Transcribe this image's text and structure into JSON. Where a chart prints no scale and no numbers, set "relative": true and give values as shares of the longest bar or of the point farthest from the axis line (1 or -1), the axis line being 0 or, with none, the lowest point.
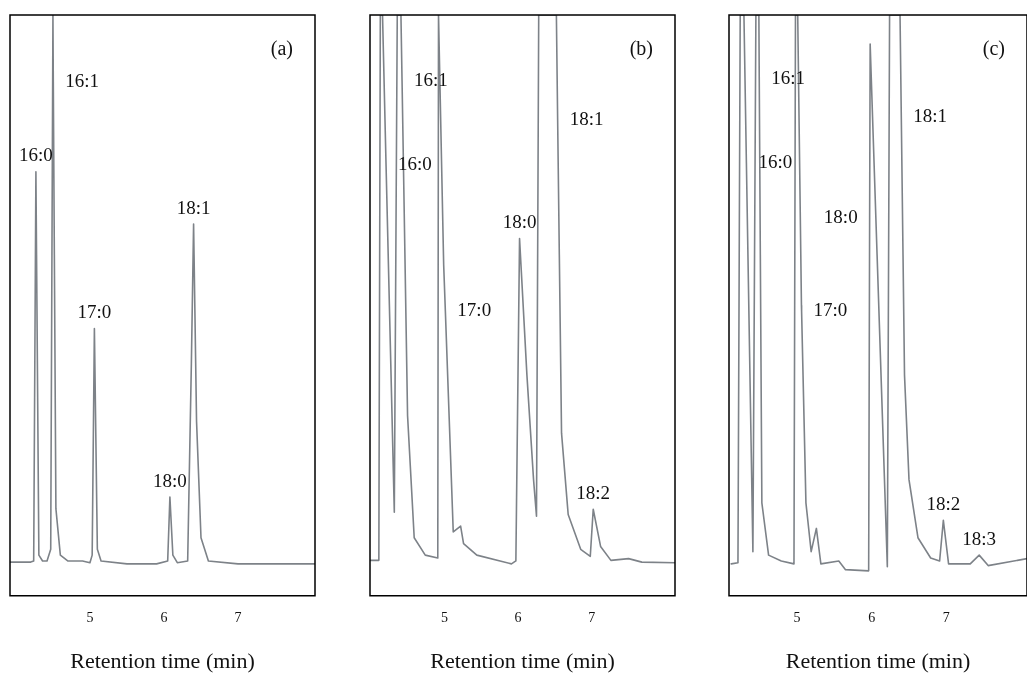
{
  "chart_data": [
    {
      "type": "line",
      "title": "(a)",
      "xlabel": "Retention time (min)",
      "relative": true,
      "xlim": [
        3.92,
        8.04
      ],
      "xticks": [
        5,
        6,
        7
      ],
      "tick_labels": "x",
      "grid": false,
      "marker": "none",
      "x": [
        3.92,
        4.2,
        4.24,
        4.27,
        4.31,
        4.36,
        4.42,
        4.47,
        4.5,
        4.505,
        4.54,
        4.6,
        4.7,
        4.9,
        5.0,
        5.03,
        5.06,
        5.1,
        5.15,
        5.5,
        5.9,
        6.05,
        6.08,
        6.12,
        6.18,
        6.32,
        6.37,
        6.4,
        6.44,
        6.5,
        6.6,
        7.0,
        7.5,
        8.04
      ],
      "series": [
        {
          "color": "#7d8288",
          "values": [
            0.058,
            0.058,
            0.06,
            0.73,
            0.07,
            0.06,
            0.06,
            0.08,
            1.0,
            0.885,
            0.15,
            0.07,
            0.06,
            0.06,
            0.057,
            0.07,
            0.46,
            0.08,
            0.06,
            0.055,
            0.055,
            0.06,
            0.17,
            0.07,
            0.057,
            0.06,
            0.4,
            0.64,
            0.3,
            0.1,
            0.06,
            0.055,
            0.055,
            0.055
          ]
        }
      ],
      "annotations": [
        {
          "text": "16:0",
          "x": 4.27,
          "y": 0.73
        },
        {
          "text": "16:1",
          "x": 4.505,
          "y": 0.885
        },
        {
          "text": "17:0",
          "x": 5.06,
          "y": 0.46
        },
        {
          "text": "18:0",
          "x": 6.08,
          "y": 0.17
        },
        {
          "text": "18:1",
          "x": 6.4,
          "y": 0.64
        }
      ]
    },
    {
      "type": "line",
      "title": "(b)",
      "xlabel": "Retention time (min)",
      "relative": true,
      "xlim": [
        3.99,
        8.13
      ],
      "xticks": [
        5,
        6,
        7
      ],
      "tick_labels": "x",
      "grid": false,
      "marker": "none",
      "x": [
        3.99,
        4.11,
        4.13,
        4.16,
        4.208,
        4.32,
        4.36,
        4.38,
        4.41,
        4.425,
        4.5,
        4.59,
        4.74,
        4.91,
        4.92,
        4.99,
        5.013,
        5.12,
        5.22,
        5.26,
        5.44,
        5.91,
        5.97,
        6.02,
        6.12,
        6.21,
        6.25,
        6.28,
        6.52,
        6.537,
        6.59,
        6.68,
        6.85,
        6.98,
        7.02,
        7.12,
        7.26,
        7.5,
        7.68,
        8.13
      ],
      "series": [
        {
          "color": "#7d8288",
          "values": [
            0.061,
            0.061,
            1.0,
            1.0,
            0.741,
            0.144,
            1.0,
            1.0,
            1.0,
            0.887,
            0.31,
            0.1,
            0.07,
            0.065,
            1.0,
            0.57,
            0.49,
            0.11,
            0.12,
            0.09,
            0.07,
            0.055,
            0.06,
            0.615,
            0.38,
            0.2,
            0.137,
            1.0,
            1.0,
            0.82,
            0.28,
            0.14,
            0.08,
            0.068,
            0.149,
            0.085,
            0.061,
            0.064,
            0.058,
            0.057
          ]
        }
      ],
      "annotations": [
        {
          "text": "16:1",
          "x": 4.425,
          "y": 0.887
        },
        {
          "text": "16:0",
          "x": 4.208,
          "y": 0.741
        },
        {
          "text": "17:0",
          "x": 5.013,
          "y": 0.49
        },
        {
          "text": "18:0",
          "x": 6.02,
          "y": 0.615
        },
        {
          "text": "18:1",
          "x": 6.537,
          "y": 0.82
        },
        {
          "text": "18:2",
          "x": 7.02,
          "y": 0.149
        }
      ]
    },
    {
      "type": "line",
      "title": "(c)",
      "xlabel": "Retention time (min)",
      "relative": true,
      "xlim": [
        4.09,
        8.08
      ],
      "xticks": [
        5,
        6,
        7
      ],
      "tick_labels": "x",
      "grid": false,
      "marker": "none",
      "x": [
        4.12,
        4.21,
        4.24,
        4.29,
        4.323,
        4.41,
        4.45,
        4.49,
        4.495,
        4.53,
        4.62,
        4.79,
        4.96,
        4.98,
        5.01,
        5.06,
        5.062,
        5.12,
        5.19,
        5.26,
        5.32,
        5.56,
        5.65,
        5.96,
        5.973,
        5.98,
        6.21,
        6.24,
        6.38,
        6.397,
        6.44,
        6.5,
        6.62,
        6.79,
        6.91,
        6.96,
        7.03,
        7.32,
        7.44,
        7.56,
        8.08
      ],
      "series": [
        {
          "color": "#7d8288",
          "values": [
            0.055,
            0.057,
            1.0,
            1.0,
            0.745,
            0.076,
            1.0,
            1.0,
            0.89,
            0.16,
            0.07,
            0.06,
            0.055,
            1.0,
            1.0,
            0.5,
            0.49,
            0.16,
            0.076,
            0.116,
            0.055,
            0.06,
            0.045,
            0.043,
            0.651,
            0.95,
            0.05,
            1.0,
            1.0,
            0.824,
            0.38,
            0.2,
            0.1,
            0.065,
            0.06,
            0.13,
            0.055,
            0.055,
            0.07,
            0.052,
            0.064
          ]
        }
      ],
      "annotations": [
        {
          "text": "16:1",
          "x": 4.495,
          "y": 0.89
        },
        {
          "text": "16:0",
          "x": 4.323,
          "y": 0.745
        },
        {
          "text": "17:0",
          "x": 5.062,
          "y": 0.49
        },
        {
          "text": "18:0",
          "x": 5.973,
          "y": 0.651
        },
        {
          "text": "18:1",
          "x": 6.397,
          "y": 0.824
        },
        {
          "text": "18:2",
          "x": 6.96,
          "y": 0.13
        },
        {
          "text": "18:3",
          "x": 7.44,
          "y": 0.07
        }
      ]
    }
  ]
}
